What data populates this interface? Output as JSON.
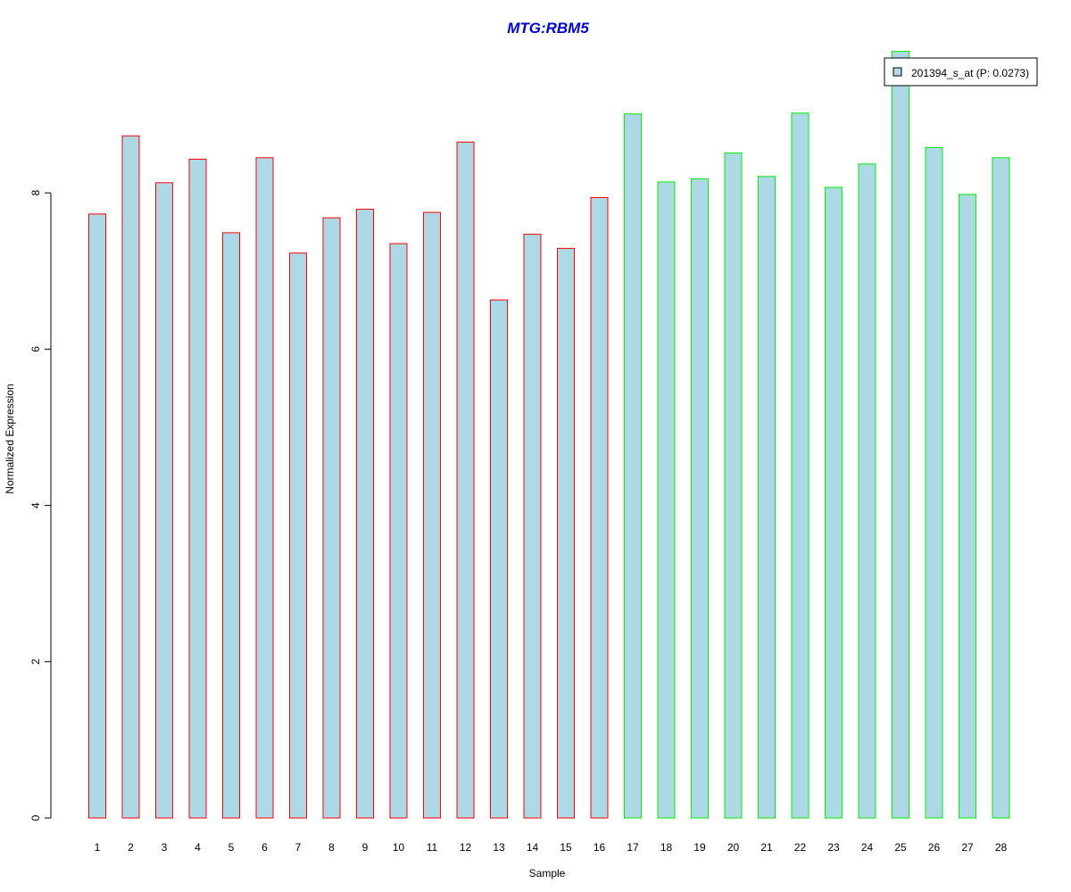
{
  "chart_data": {
    "type": "bar",
    "title": "MTG:RBM5",
    "xlabel": "Sample",
    "ylabel": "Normalized Expression",
    "categories": [
      "1",
      "2",
      "3",
      "4",
      "5",
      "6",
      "7",
      "8",
      "9",
      "10",
      "11",
      "12",
      "13",
      "14",
      "15",
      "16",
      "17",
      "18",
      "19",
      "20",
      "21",
      "22",
      "23",
      "24",
      "25",
      "26",
      "27",
      "28"
    ],
    "series": [
      {
        "name": "201394_s_at (P: 0.0273)",
        "values": [
          7.73,
          8.73,
          8.13,
          8.43,
          7.49,
          8.45,
          7.23,
          7.68,
          7.79,
          7.35,
          7.75,
          8.65,
          6.63,
          7.47,
          7.29,
          7.94,
          9.01,
          8.14,
          8.18,
          8.51,
          8.21,
          9.02,
          8.07,
          8.37,
          9.81,
          8.58,
          7.98,
          8.45
        ]
      }
    ],
    "group_border_colors": [
      "#ff0000",
      "#ff0000",
      "#ff0000",
      "#ff0000",
      "#ff0000",
      "#ff0000",
      "#ff0000",
      "#ff0000",
      "#ff0000",
      "#ff0000",
      "#ff0000",
      "#ff0000",
      "#ff0000",
      "#ff0000",
      "#ff0000",
      "#ff0000",
      "#00ee00",
      "#00ee00",
      "#00ee00",
      "#00ee00",
      "#00ee00",
      "#00ee00",
      "#00ee00",
      "#00ee00",
      "#00ee00",
      "#00ee00",
      "#00ee00",
      "#00ee00"
    ],
    "yticks": [
      0,
      2,
      4,
      6,
      8
    ],
    "ylim": [
      0,
      9.81
    ],
    "grid": false,
    "legend_position": "top-right",
    "colors": {
      "bar_fill": "#add8e6",
      "title": "#0000cc",
      "axis": "#000000"
    }
  }
}
